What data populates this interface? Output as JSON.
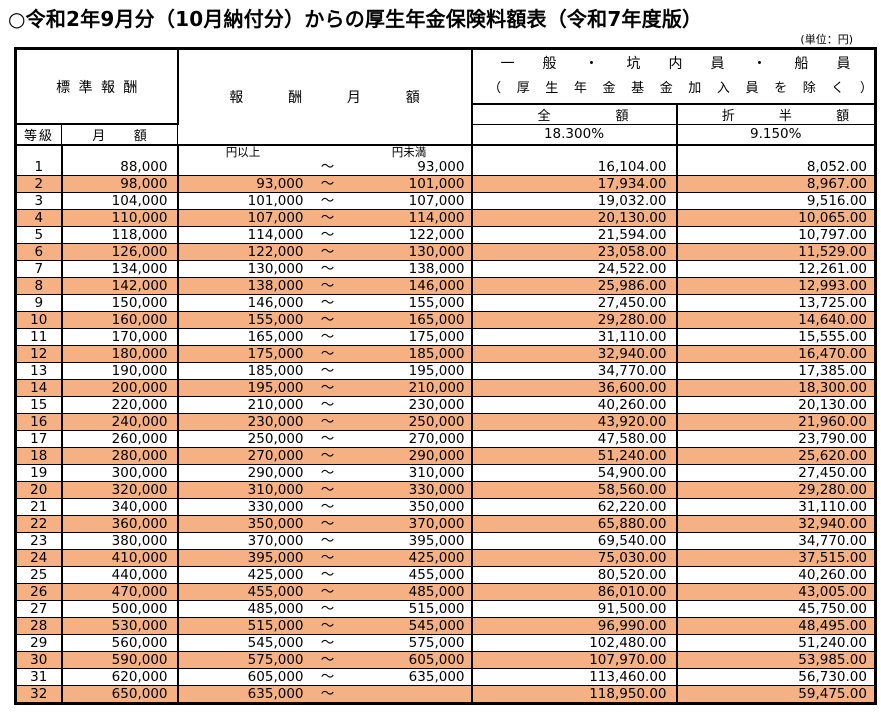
{
  "title": "○令和2年9月分（10月納付分）からの厚生年金保険料額表（令和7年度版）",
  "unit_note": "(単位：円)",
  "colors": {
    "stripe": "#F5B183",
    "border": "#000000",
    "background": "#FFFFFF"
  },
  "table": {
    "tilde": "～",
    "headers": {
      "standard_remuneration": "標準報酬",
      "grade": "等級",
      "monthly_amount": "月額",
      "remuneration_monthly": "報酬月額",
      "general_line1": "一般・坑内員・船員",
      "general_line2": "（厚生年金基金加入員を除く）",
      "full_amount": "全額",
      "half_amount": "折半額",
      "full_rate": "18.300%",
      "half_rate": "9.150%",
      "yen_or_more": "円以上",
      "yen_less_than": "円未満"
    },
    "rows": [
      {
        "grade": "1",
        "monthly": "88,000",
        "low": "",
        "high": "93,000",
        "full": "16,104.00",
        "half": "8,052.00"
      },
      {
        "grade": "2",
        "monthly": "98,000",
        "low": "93,000",
        "high": "101,000",
        "full": "17,934.00",
        "half": "8,967.00"
      },
      {
        "grade": "3",
        "monthly": "104,000",
        "low": "101,000",
        "high": "107,000",
        "full": "19,032.00",
        "half": "9,516.00"
      },
      {
        "grade": "4",
        "monthly": "110,000",
        "low": "107,000",
        "high": "114,000",
        "full": "20,130.00",
        "half": "10,065.00"
      },
      {
        "grade": "5",
        "monthly": "118,000",
        "low": "114,000",
        "high": "122,000",
        "full": "21,594.00",
        "half": "10,797.00"
      },
      {
        "grade": "6",
        "monthly": "126,000",
        "low": "122,000",
        "high": "130,000",
        "full": "23,058.00",
        "half": "11,529.00"
      },
      {
        "grade": "7",
        "monthly": "134,000",
        "low": "130,000",
        "high": "138,000",
        "full": "24,522.00",
        "half": "12,261.00"
      },
      {
        "grade": "8",
        "monthly": "142,000",
        "low": "138,000",
        "high": "146,000",
        "full": "25,986.00",
        "half": "12,993.00"
      },
      {
        "grade": "9",
        "monthly": "150,000",
        "low": "146,000",
        "high": "155,000",
        "full": "27,450.00",
        "half": "13,725.00"
      },
      {
        "grade": "10",
        "monthly": "160,000",
        "low": "155,000",
        "high": "165,000",
        "full": "29,280.00",
        "half": "14,640.00"
      },
      {
        "grade": "11",
        "monthly": "170,000",
        "low": "165,000",
        "high": "175,000",
        "full": "31,110.00",
        "half": "15,555.00"
      },
      {
        "grade": "12",
        "monthly": "180,000",
        "low": "175,000",
        "high": "185,000",
        "full": "32,940.00",
        "half": "16,470.00"
      },
      {
        "grade": "13",
        "monthly": "190,000",
        "low": "185,000",
        "high": "195,000",
        "full": "34,770.00",
        "half": "17,385.00"
      },
      {
        "grade": "14",
        "monthly": "200,000",
        "low": "195,000",
        "high": "210,000",
        "full": "36,600.00",
        "half": "18,300.00"
      },
      {
        "grade": "15",
        "monthly": "220,000",
        "low": "210,000",
        "high": "230,000",
        "full": "40,260.00",
        "half": "20,130.00"
      },
      {
        "grade": "16",
        "monthly": "240,000",
        "low": "230,000",
        "high": "250,000",
        "full": "43,920.00",
        "half": "21,960.00"
      },
      {
        "grade": "17",
        "monthly": "260,000",
        "low": "250,000",
        "high": "270,000",
        "full": "47,580.00",
        "half": "23,790.00"
      },
      {
        "grade": "18",
        "monthly": "280,000",
        "low": "270,000",
        "high": "290,000",
        "full": "51,240.00",
        "half": "25,620.00"
      },
      {
        "grade": "19",
        "monthly": "300,000",
        "low": "290,000",
        "high": "310,000",
        "full": "54,900.00",
        "half": "27,450.00"
      },
      {
        "grade": "20",
        "monthly": "320,000",
        "low": "310,000",
        "high": "330,000",
        "full": "58,560.00",
        "half": "29,280.00"
      },
      {
        "grade": "21",
        "monthly": "340,000",
        "low": "330,000",
        "high": "350,000",
        "full": "62,220.00",
        "half": "31,110.00"
      },
      {
        "grade": "22",
        "monthly": "360,000",
        "low": "350,000",
        "high": "370,000",
        "full": "65,880.00",
        "half": "32,940.00"
      },
      {
        "grade": "23",
        "monthly": "380,000",
        "low": "370,000",
        "high": "395,000",
        "full": "69,540.00",
        "half": "34,770.00"
      },
      {
        "grade": "24",
        "monthly": "410,000",
        "low": "395,000",
        "high": "425,000",
        "full": "75,030.00",
        "half": "37,515.00"
      },
      {
        "grade": "25",
        "monthly": "440,000",
        "low": "425,000",
        "high": "455,000",
        "full": "80,520.00",
        "half": "40,260.00"
      },
      {
        "grade": "26",
        "monthly": "470,000",
        "low": "455,000",
        "high": "485,000",
        "full": "86,010.00",
        "half": "43,005.00"
      },
      {
        "grade": "27",
        "monthly": "500,000",
        "low": "485,000",
        "high": "515,000",
        "full": "91,500.00",
        "half": "45,750.00"
      },
      {
        "grade": "28",
        "monthly": "530,000",
        "low": "515,000",
        "high": "545,000",
        "full": "96,990.00",
        "half": "48,495.00"
      },
      {
        "grade": "29",
        "monthly": "560,000",
        "low": "545,000",
        "high": "575,000",
        "full": "102,480.00",
        "half": "51,240.00"
      },
      {
        "grade": "30",
        "monthly": "590,000",
        "low": "575,000",
        "high": "605,000",
        "full": "107,970.00",
        "half": "53,985.00"
      },
      {
        "grade": "31",
        "monthly": "620,000",
        "low": "605,000",
        "high": "635,000",
        "full": "113,460.00",
        "half": "56,730.00"
      },
      {
        "grade": "32",
        "monthly": "650,000",
        "low": "635,000",
        "high": "",
        "full": "118,950.00",
        "half": "59,475.00"
      }
    ]
  }
}
